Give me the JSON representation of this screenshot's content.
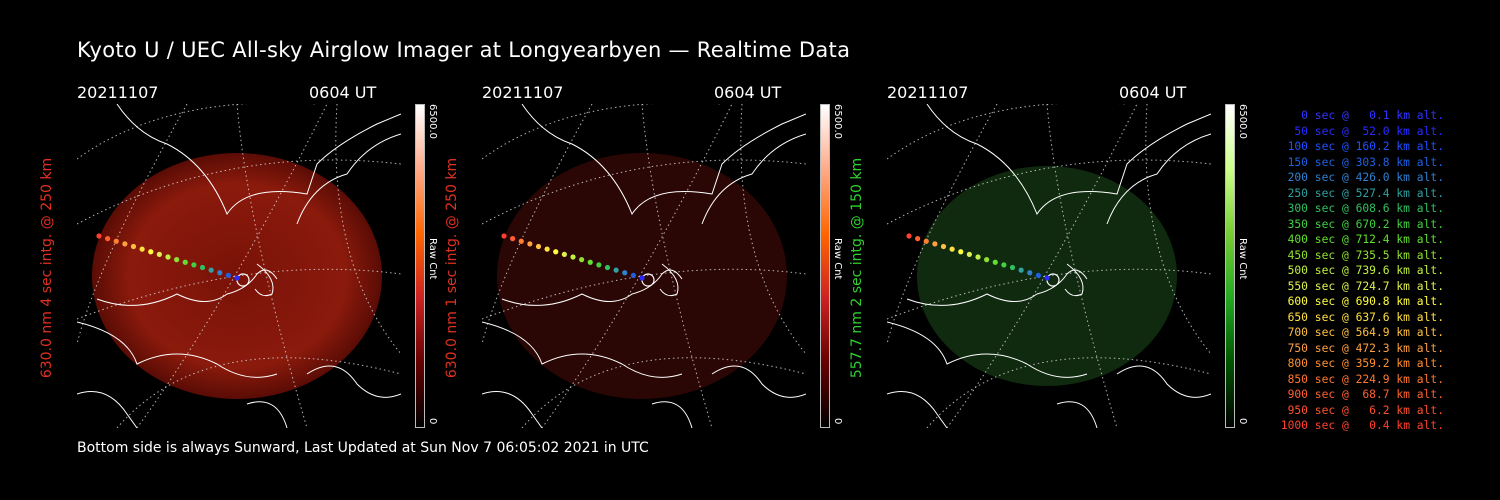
{
  "title": "Kyoto U / UEC All-sky Airglow Imager at Longyearbyen — Realtime Data",
  "footer": "Bottom side is always Sunward, Last Updated at Sun Nov  7 06:05:02 2021 in UTC",
  "panels": [
    {
      "date": "20211107",
      "time": "0604 UT",
      "ylabel": "630.0 nm 4 sec intg. @ 250 km",
      "label_color": "#e03020",
      "cbar_max": "6500.0",
      "cbar_min": "0",
      "cbar_unit": "Raw Cnt",
      "colormap": "red"
    },
    {
      "date": "20211107",
      "time": "0604 UT",
      "ylabel": "630.0 nm 1 sec intg. @ 250 km",
      "label_color": "#e03020",
      "cbar_max": "6500.0",
      "cbar_min": "0",
      "cbar_unit": "Raw Cnt",
      "colormap": "darkred"
    },
    {
      "date": "20211107",
      "time": "0604 UT",
      "ylabel": "557.7 nm 2 sec intg. @ 150 km",
      "label_color": "#30d030",
      "cbar_max": "6500.0",
      "cbar_min": "0",
      "cbar_unit": "Raw Cnt",
      "colormap": "green"
    }
  ],
  "legend": [
    {
      "text": "0 sec @   0.1 km alt.",
      "color": "#3333ff"
    },
    {
      "text": "50 sec @  52.0 km alt.",
      "color": "#2a2aff"
    },
    {
      "text": "100 sec @ 160.2 km alt.",
      "color": "#2050ff"
    },
    {
      "text": "150 sec @ 303.8 km alt.",
      "color": "#2060e0"
    },
    {
      "text": "200 sec @ 426.0 km alt.",
      "color": "#3080d0"
    },
    {
      "text": "250 sec @ 527.4 km alt.",
      "color": "#30a0a0"
    },
    {
      "text": "300 sec @ 608.6 km alt.",
      "color": "#30c060"
    },
    {
      "text": "350 sec @ 670.2 km alt.",
      "color": "#40d040"
    },
    {
      "text": "400 sec @ 712.4 km alt.",
      "color": "#60e030"
    },
    {
      "text": "450 sec @ 735.5 km alt.",
      "color": "#90e030"
    },
    {
      "text": "500 sec @ 739.6 km alt.",
      "color": "#c0f040"
    },
    {
      "text": "550 sec @ 724.7 km alt.",
      "color": "#e0f050"
    },
    {
      "text": "600 sec @ 690.8 km alt.",
      "color": "#ffff40"
    },
    {
      "text": "650 sec @ 637.6 km alt.",
      "color": "#ffe040"
    },
    {
      "text": "700 sec @ 564.9 km alt.",
      "color": "#ffc040"
    },
    {
      "text": "750 sec @ 472.3 km alt.",
      "color": "#ffa040"
    },
    {
      "text": "800 sec @ 359.2 km alt.",
      "color": "#ff9030"
    },
    {
      "text": "850 sec @ 224.9 km alt.",
      "color": "#ff7830"
    },
    {
      "text": "900 sec @  68.7 km alt.",
      "color": "#ff6030"
    },
    {
      "text": "950 sec @   6.2 km alt.",
      "color": "#ff5030"
    },
    {
      "text": "1000 sec @   0.4 km alt.",
      "color": "#ff4030"
    }
  ]
}
